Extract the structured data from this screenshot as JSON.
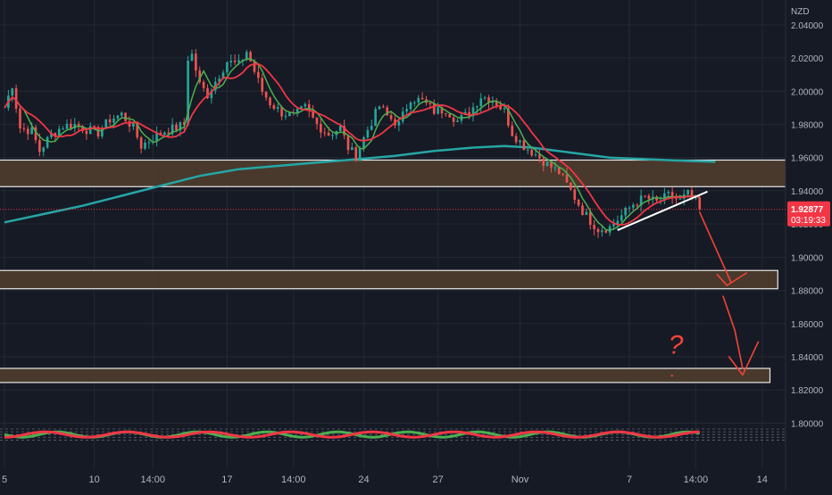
{
  "chart_data": {
    "type": "candlestick",
    "currency_label": "NZD",
    "colors": {
      "background": "#161a25",
      "grid": "#232834",
      "axis_text": "#b2b5be",
      "candle_up": "#26a69a",
      "candle_down": "#ef5350",
      "ma_fast": "#4caf50",
      "ma_slow": "#f23645",
      "ma_long": "#26a6a6",
      "zone_fill": "#4e3d2d",
      "zone_border": "#e8e8e8",
      "last_price_bg": "#f23645",
      "annotation_red": "#f44336"
    },
    "y_axis": {
      "range": [
        1.7895,
        2.0485
      ],
      "tick_labels": [
        "2.04000",
        "2.02000",
        "2.00000",
        "1.98000",
        "1.96000",
        "1.94000",
        "1.92000",
        "1.90000",
        "1.88000",
        "1.86000",
        "1.84000",
        "1.82000",
        "1.80000"
      ]
    },
    "x_axis": {
      "range": [
        0,
        200
      ],
      "tick_labels": [
        {
          "label": "5",
          "x": 0
        },
        {
          "label": "10",
          "x": 23
        },
        {
          "label": "14:00",
          "x": 38
        },
        {
          "label": "17",
          "x": 57
        },
        {
          "label": "14:00",
          "x": 74
        },
        {
          "label": "24",
          "x": 92
        },
        {
          "label": "27",
          "x": 111
        },
        {
          "label": "Nov",
          "x": 132
        },
        {
          "label": "7",
          "x": 160
        },
        {
          "label": "14:00",
          "x": 177
        },
        {
          "label": "14",
          "x": 194
        }
      ]
    },
    "last_price": {
      "value": 1.9288,
      "label": "1.92877",
      "countdown": "03:19:33"
    },
    "anchor_closes": [
      [
        0,
        1.99
      ],
      [
        2,
        2.004
      ],
      [
        4,
        1.978
      ],
      [
        7,
        1.976
      ],
      [
        9,
        1.964
      ],
      [
        12,
        1.974
      ],
      [
        15,
        1.979
      ],
      [
        18,
        1.98
      ],
      [
        21,
        1.977
      ],
      [
        24,
        1.975
      ],
      [
        27,
        1.983
      ],
      [
        30,
        1.986
      ],
      [
        33,
        1.978
      ],
      [
        35,
        1.967
      ],
      [
        38,
        1.972
      ],
      [
        41,
        1.976
      ],
      [
        44,
        1.978
      ],
      [
        46,
        1.98
      ],
      [
        47,
        2.02
      ],
      [
        48,
        2.022
      ],
      [
        50,
        2.004
      ],
      [
        52,
        1.998
      ],
      [
        55,
        2.01
      ],
      [
        57,
        2.018
      ],
      [
        60,
        2.016
      ],
      [
        62,
        2.024
      ],
      [
        64,
        2.012
      ],
      [
        66,
        2.0
      ],
      [
        68,
        1.993
      ],
      [
        71,
        1.987
      ],
      [
        74,
        1.985
      ],
      [
        77,
        1.99
      ],
      [
        80,
        1.98
      ],
      [
        83,
        1.974
      ],
      [
        86,
        1.978
      ],
      [
        88,
        1.966
      ],
      [
        90,
        1.961
      ],
      [
        93,
        1.977
      ],
      [
        96,
        1.991
      ],
      [
        98,
        1.985
      ],
      [
        101,
        1.98
      ],
      [
        104,
        1.996
      ],
      [
        107,
        1.994
      ],
      [
        110,
        1.988
      ],
      [
        113,
        1.989
      ],
      [
        116,
        1.982
      ],
      [
        119,
        1.987
      ],
      [
        122,
        1.997
      ],
      [
        125,
        1.995
      ],
      [
        128,
        1.988
      ],
      [
        130,
        1.975
      ],
      [
        133,
        1.967
      ],
      [
        136,
        1.962
      ],
      [
        139,
        1.956
      ],
      [
        142,
        1.951
      ],
      [
        145,
        1.94
      ],
      [
        148,
        1.928
      ],
      [
        150,
        1.922
      ],
      [
        152,
        1.917
      ],
      [
        155,
        1.918
      ],
      [
        158,
        1.925
      ],
      [
        161,
        1.932
      ],
      [
        164,
        1.936
      ],
      [
        167,
        1.933
      ],
      [
        170,
        1.937
      ],
      [
        173,
        1.934
      ],
      [
        175,
        1.938
      ],
      [
        177,
        1.933
      ],
      [
        178,
        1.9288
      ]
    ],
    "ma_long_points": [
      [
        0,
        1.921
      ],
      [
        10,
        1.926
      ],
      [
        20,
        1.931
      ],
      [
        30,
        1.937
      ],
      [
        40,
        1.943
      ],
      [
        50,
        1.949
      ],
      [
        60,
        1.953
      ],
      [
        70,
        1.955
      ],
      [
        80,
        1.957
      ],
      [
        90,
        1.959
      ],
      [
        100,
        1.961
      ],
      [
        110,
        1.964
      ],
      [
        120,
        1.966
      ],
      [
        128,
        1.967
      ],
      [
        135,
        1.966
      ],
      [
        145,
        1.963
      ],
      [
        155,
        1.96
      ],
      [
        165,
        1.959
      ],
      [
        175,
        1.958
      ],
      [
        182,
        1.9575
      ]
    ],
    "zones": [
      {
        "y_low": 1.9425,
        "y_high": 1.9585,
        "x_end": 203
      },
      {
        "y_low": 1.881,
        "y_high": 1.892,
        "x_end": 198
      },
      {
        "y_low": 1.8245,
        "y_high": 1.833,
        "x_end": 196
      }
    ],
    "trendline": [
      [
        157,
        1.9163
      ],
      [
        180,
        1.9395
      ]
    ],
    "annotations": {
      "arrow_path_1": [
        [
          178,
          1.927
        ],
        [
          182,
          1.906
        ],
        [
          186,
          1.885
        ]
      ],
      "arrow_head_1": [
        [
          182.5,
          1.8895
        ],
        [
          185,
          1.883
        ],
        [
          190,
          1.8905
        ]
      ],
      "arrow_path_2": [
        [
          184,
          1.8765
        ],
        [
          187,
          1.856
        ],
        [
          189,
          1.833
        ]
      ],
      "arrow_head_2": [
        [
          185.5,
          1.84
        ],
        [
          189,
          1.829
        ],
        [
          193,
          1.849
        ]
      ],
      "question_mark_text": "?",
      "question_mark_pos": [
        170,
        1.842
      ]
    },
    "oscillator": {
      "band_top": 1.7965,
      "band_bottom": 1.7898
    }
  }
}
